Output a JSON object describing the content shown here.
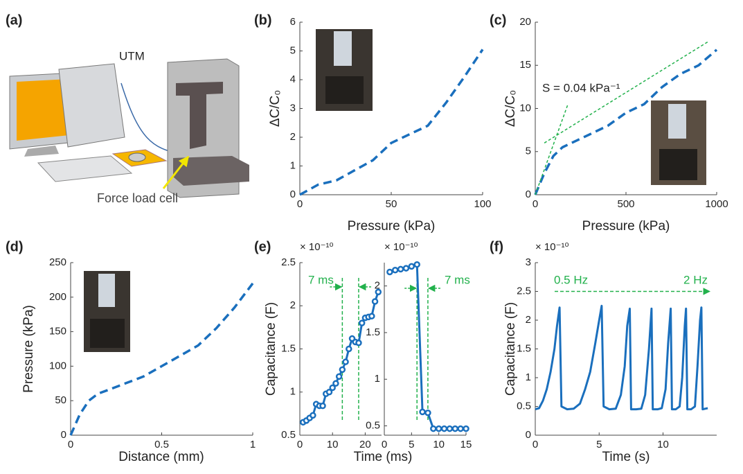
{
  "illustration": {
    "panel_label": "(a)",
    "machine_label": "UTM",
    "sensor_label": "Force load cell"
  },
  "chart_data": [
    {
      "type": "line",
      "panel_label": "(b)",
      "xlabel": "Pressure (kPa)",
      "ylabel": "ΔC/C₀",
      "xlim": [
        0,
        100
      ],
      "ylim": [
        0,
        6
      ],
      "xticks": [
        0,
        50,
        100
      ],
      "yticks": [
        0,
        1,
        2,
        3,
        4,
        5,
        6
      ],
      "series": [
        {
          "color": "#1a6fbd",
          "style": "dashed",
          "x": [
            0,
            10,
            20,
            30,
            40,
            50,
            60,
            70,
            80,
            90,
            100
          ],
          "values": [
            0,
            0.35,
            0.5,
            0.85,
            1.2,
            1.8,
            2.1,
            2.4,
            3.2,
            4.1,
            5.05
          ]
        }
      ]
    },
    {
      "type": "line",
      "panel_label": "(c)",
      "xlabel": "Pressure (kPa)",
      "ylabel": "ΔC/C₀",
      "xlim": [
        0,
        1000
      ],
      "ylim": [
        0,
        20
      ],
      "xticks": [
        0,
        500,
        1000
      ],
      "yticks": [
        0,
        5,
        10,
        15,
        20
      ],
      "annotations": [
        "S = 0.04 kPa⁻¹"
      ],
      "series": [
        {
          "color": "#1a6fbd",
          "style": "dashed",
          "x": [
            0,
            50,
            100,
            150,
            200,
            300,
            400,
            500,
            600,
            700,
            800,
            900,
            1000
          ],
          "values": [
            0,
            2.5,
            4.5,
            5.5,
            6,
            7,
            8,
            9.5,
            10.5,
            12.5,
            14,
            15,
            16.8
          ]
        },
        {
          "color": "#22b14c",
          "style": "dotted",
          "x": [
            0,
            180
          ],
          "values": [
            0,
            10.5
          ]
        },
        {
          "color": "#22b14c",
          "style": "dotted",
          "x": [
            50,
            950
          ],
          "values": [
            6,
            17.7
          ]
        }
      ]
    },
    {
      "type": "line",
      "panel_label": "(d)",
      "xlabel": "Distance (mm)",
      "ylabel": "Pressure (kPa)",
      "xlim": [
        0,
        1
      ],
      "ylim": [
        0,
        250
      ],
      "xticks": [
        0,
        0.5,
        1
      ],
      "yticks": [
        0,
        50,
        100,
        150,
        200,
        250
      ],
      "series": [
        {
          "color": "#1a6fbd",
          "style": "dashed",
          "x": [
            0,
            0.05,
            0.1,
            0.15,
            0.2,
            0.3,
            0.4,
            0.5,
            0.6,
            0.7,
            0.8,
            0.9,
            1
          ],
          "values": [
            0,
            30,
            50,
            60,
            65,
            75,
            85,
            100,
            115,
            130,
            155,
            185,
            220
          ]
        }
      ]
    },
    {
      "type": "line",
      "panel_label": "(e)",
      "xlabel": "Time (ms)",
      "ylabel": "Capacitance (F)",
      "multiplier": "× 10⁻¹⁰",
      "xlim": [
        0,
        25
      ],
      "ylim": [
        0.5,
        2.5
      ],
      "xticks": [
        0,
        10,
        20
      ],
      "yticks": [
        0.5,
        1,
        1.5,
        2,
        2.5
      ],
      "vlines": [
        13,
        18
      ],
      "vline_color": "#22b14c",
      "annotations": [
        "7 ms"
      ],
      "series": [
        {
          "color": "#1a6fbd",
          "style": "solid",
          "marker": "circle",
          "x": [
            1,
            2,
            3,
            4,
            5,
            6,
            7,
            8,
            9,
            10,
            11,
            12,
            13,
            14,
            15,
            16,
            17,
            18,
            19,
            20,
            21,
            22,
            23,
            24
          ],
          "values": [
            0.65,
            0.67,
            0.7,
            0.73,
            0.86,
            0.84,
            0.84,
            0.98,
            1.0,
            1.05,
            1.1,
            1.18,
            1.26,
            1.35,
            1.5,
            1.62,
            1.58,
            1.57,
            1.8,
            1.86,
            1.87,
            1.88,
            2.05,
            2.16
          ]
        }
      ]
    },
    {
      "type": "line",
      "multiplier": "× 10⁻¹⁰",
      "xlim": [
        0,
        15
      ],
      "ylim": [
        0.4,
        2.25
      ],
      "xticks": [
        0,
        5,
        10,
        15
      ],
      "yticks": [
        0.5,
        1,
        1.5,
        2
      ],
      "vlines": [
        6,
        8
      ],
      "vline_color": "#22b14c",
      "annotations": [
        "7 ms"
      ],
      "series": [
        {
          "color": "#1a6fbd",
          "style": "solid",
          "marker": "circle",
          "x": [
            1,
            2,
            3,
            4,
            5,
            6,
            7,
            8,
            9,
            10,
            11,
            12,
            13,
            14,
            15
          ],
          "values": [
            2.15,
            2.17,
            2.18,
            2.19,
            2.21,
            2.23,
            0.65,
            0.64,
            0.47,
            0.47,
            0.47,
            0.47,
            0.47,
            0.47,
            0.47
          ]
        }
      ]
    },
    {
      "type": "line",
      "panel_label": "(f)",
      "xlabel": "Time (s)",
      "ylabel": "Capacitance (F)",
      "multiplier": "× 10⁻¹⁰",
      "xlim": [
        0,
        14.2
      ],
      "ylim": [
        0,
        3
      ],
      "xticks": [
        0,
        5,
        10
      ],
      "yticks": [
        0,
        0.5,
        1,
        1.5,
        2,
        2.5,
        3
      ],
      "annotations": [
        "0.5 Hz",
        "2 Hz"
      ],
      "series": [
        {
          "color": "#1a6fbd",
          "style": "solid",
          "x": [
            0,
            0.3,
            0.6,
            0.9,
            1.2,
            1.5,
            1.7,
            1.9,
            2.05,
            2.5,
            3,
            3.5,
            3.9,
            4.3,
            4.7,
            5.0,
            5.2,
            5.35,
            5.8,
            6.3,
            6.7,
            7.0,
            7.2,
            7.4,
            7.5,
            7.9,
            8.3,
            8.6,
            8.9,
            9.1,
            9.2,
            9.6,
            9.9,
            10.2,
            10.4,
            10.6,
            10.7,
            11.0,
            11.3,
            11.5,
            11.7,
            11.8,
            11.9,
            12.2,
            12.5,
            12.7,
            12.9,
            13.0,
            13.1,
            13.3,
            13.5
          ],
          "values": [
            0.45,
            0.47,
            0.6,
            0.8,
            1.1,
            1.5,
            1.9,
            2.22,
            0.5,
            0.45,
            0.46,
            0.55,
            0.8,
            1.1,
            1.6,
            2.0,
            2.25,
            0.5,
            0.45,
            0.46,
            0.7,
            1.2,
            1.9,
            2.2,
            0.45,
            0.45,
            0.46,
            0.7,
            1.5,
            2.2,
            0.45,
            0.45,
            0.47,
            0.8,
            1.6,
            2.2,
            0.45,
            0.45,
            0.5,
            1.0,
            1.9,
            2.2,
            0.45,
            0.45,
            0.5,
            1.2,
            2.0,
            2.22,
            0.45,
            0.46,
            0.47
          ]
        }
      ]
    }
  ]
}
